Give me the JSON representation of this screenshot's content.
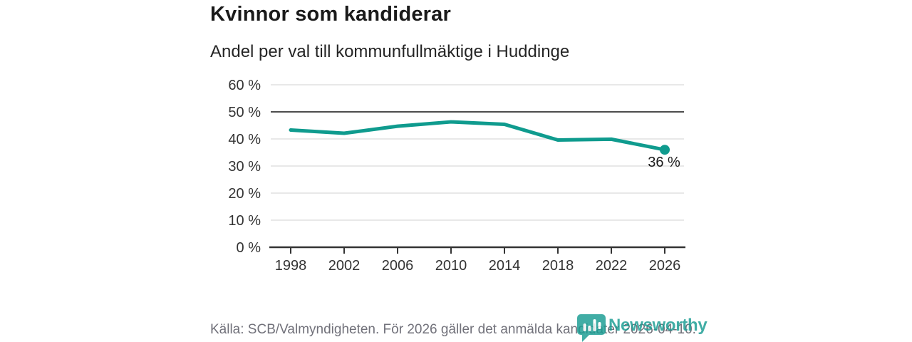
{
  "header": {
    "title": "Kvinnor som kandiderar",
    "subtitle": "Andel per val till kommunfullmäktige i Huddinge"
  },
  "chart_data": {
    "type": "line",
    "categories": [
      "1998",
      "2002",
      "2006",
      "2010",
      "2014",
      "2018",
      "2022",
      "2026"
    ],
    "values": [
      43.3,
      42.1,
      44.7,
      46.3,
      45.4,
      39.6,
      39.9,
      36
    ],
    "title": "Kvinnor som kandiderar",
    "subtitle": "Andel per val till kommunfullmäktige i Huddinge",
    "xlabel": "",
    "ylabel": "",
    "ylim": [
      0,
      60
    ],
    "ytick_step": 10,
    "ytick_suffix": " %",
    "reference_line": 50,
    "grid": true,
    "legend": "none",
    "last_point_label": "36 %",
    "line_color": "#0f9b8e"
  },
  "footer": {
    "source": "Källa: SCB/Valmyndigheten. För 2026 gäller det anmälda kandidater 2026-04-10.",
    "logo_text": "Newsworthy"
  },
  "colors": {
    "accent": "#0f9b8e",
    "brand": "#189c92",
    "grid": "#d9d9d9",
    "reference": "#4d4d4d",
    "axis": "#333333",
    "title_text": "#1a1a1a",
    "source_text": "#71717a"
  }
}
